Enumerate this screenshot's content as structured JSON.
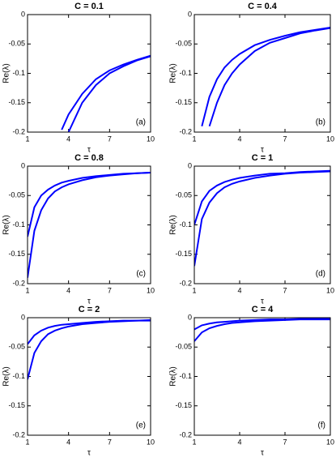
{
  "chart_data": [
    {
      "type": "line",
      "title": "C = 0.1",
      "xlabel": "τ",
      "ylabel": "Re(λ)",
      "panel_label": "(a)",
      "x": [
        1,
        1.5,
        2,
        2.5,
        3,
        3.5,
        4,
        5,
        6,
        7,
        8,
        9,
        10
      ],
      "series": [
        {
          "color": "#0000ff",
          "values": [
            null,
            null,
            null,
            null,
            null,
            -0.196,
            -0.17,
            -0.135,
            -0.11,
            -0.095,
            -0.085,
            -0.077,
            -0.07
          ]
        },
        {
          "color": "#0000ff",
          "values": [
            null,
            null,
            null,
            null,
            null,
            null,
            -0.2,
            -0.15,
            -0.12,
            -0.1,
            -0.088,
            -0.078,
            -0.071
          ]
        }
      ],
      "xlim": [
        1,
        10
      ],
      "ylim": [
        -0.2,
        0
      ],
      "xticks": [
        1,
        4,
        7,
        10
      ],
      "yticks": [
        0,
        -0.05,
        -0.1,
        -0.15,
        -0.2
      ]
    },
    {
      "type": "line",
      "title": "C = 0.4",
      "xlabel": "τ",
      "ylabel": "Re(λ)",
      "panel_label": "(b)",
      "x": [
        1,
        1.5,
        2,
        2.5,
        3,
        3.5,
        4,
        5,
        6,
        7,
        8,
        9,
        10
      ],
      "series": [
        {
          "color": "#0000ff",
          "values": [
            null,
            -0.19,
            -0.14,
            -0.11,
            -0.09,
            -0.077,
            -0.067,
            -0.052,
            -0.043,
            -0.036,
            -0.03,
            -0.026,
            -0.022
          ]
        },
        {
          "color": "#0000ff",
          "values": [
            null,
            null,
            -0.19,
            -0.15,
            -0.12,
            -0.1,
            -0.085,
            -0.062,
            -0.048,
            -0.04,
            -0.032,
            -0.027,
            -0.023
          ]
        }
      ],
      "xlim": [
        1,
        10
      ],
      "ylim": [
        -0.2,
        0
      ],
      "xticks": [
        1,
        4,
        7,
        10
      ],
      "yticks": [
        0,
        -0.05,
        -0.1,
        -0.15,
        -0.2
      ]
    },
    {
      "type": "line",
      "title": "C = 0.8",
      "xlabel": "τ",
      "ylabel": "Re(λ)",
      "panel_label": "(c)",
      "x": [
        1,
        1.5,
        2,
        2.5,
        3,
        3.5,
        4,
        5,
        6,
        7,
        8,
        9,
        10
      ],
      "series": [
        {
          "color": "#0000ff",
          "values": [
            -0.12,
            -0.07,
            -0.05,
            -0.04,
            -0.033,
            -0.028,
            -0.025,
            -0.02,
            -0.017,
            -0.015,
            -0.013,
            -0.012,
            -0.011
          ]
        },
        {
          "color": "#0000ff",
          "values": [
            -0.19,
            -0.11,
            -0.075,
            -0.055,
            -0.043,
            -0.036,
            -0.031,
            -0.024,
            -0.019,
            -0.016,
            -0.014,
            -0.012,
            -0.011
          ]
        }
      ],
      "xlim": [
        1,
        10
      ],
      "ylim": [
        -0.2,
        0
      ],
      "xticks": [
        1,
        4,
        7,
        10
      ],
      "yticks": [
        0,
        -0.05,
        -0.1,
        -0.15,
        -0.2
      ]
    },
    {
      "type": "line",
      "title": "C = 1",
      "xlabel": "τ",
      "ylabel": "Re(λ)",
      "panel_label": "(d)",
      "x": [
        1,
        1.5,
        2,
        2.5,
        3,
        3.5,
        4,
        5,
        6,
        7,
        8,
        9,
        10
      ],
      "series": [
        {
          "color": "#0000ff",
          "values": [
            -0.1,
            -0.06,
            -0.042,
            -0.033,
            -0.027,
            -0.023,
            -0.02,
            -0.016,
            -0.013,
            -0.012,
            -0.01,
            -0.009,
            -0.008
          ]
        },
        {
          "color": "#0000ff",
          "values": [
            -0.17,
            -0.09,
            -0.062,
            -0.046,
            -0.036,
            -0.03,
            -0.026,
            -0.02,
            -0.016,
            -0.013,
            -0.011,
            -0.01,
            -0.009
          ]
        }
      ],
      "xlim": [
        1,
        10
      ],
      "ylim": [
        -0.2,
        0
      ],
      "xticks": [
        1,
        4,
        7,
        10
      ],
      "yticks": [
        0,
        -0.05,
        -0.1,
        -0.15,
        -0.2
      ]
    },
    {
      "type": "line",
      "title": "C = 2",
      "xlabel": "τ",
      "ylabel": "Re(λ)",
      "panel_label": "(e)",
      "x": [
        1,
        1.5,
        2,
        2.5,
        3,
        3.5,
        4,
        5,
        6,
        7,
        8,
        9,
        10
      ],
      "series": [
        {
          "color": "#0000ff",
          "values": [
            -0.045,
            -0.03,
            -0.022,
            -0.017,
            -0.014,
            -0.012,
            -0.011,
            -0.009,
            -0.007,
            -0.006,
            -0.005,
            -0.005,
            -0.004
          ]
        },
        {
          "color": "#0000ff",
          "values": [
            -0.105,
            -0.06,
            -0.04,
            -0.028,
            -0.022,
            -0.018,
            -0.015,
            -0.011,
            -0.009,
            -0.007,
            -0.006,
            -0.005,
            -0.005
          ]
        }
      ],
      "xlim": [
        1,
        10
      ],
      "ylim": [
        -0.2,
        0
      ],
      "xticks": [
        1,
        4,
        7,
        10
      ],
      "yticks": [
        0,
        -0.05,
        -0.1,
        -0.15,
        -0.2
      ]
    },
    {
      "type": "line",
      "title": "C = 4",
      "xlabel": "τ",
      "ylabel": "Re(λ)",
      "panel_label": "(f)",
      "x": [
        1,
        1.5,
        2,
        2.5,
        3,
        3.5,
        4,
        5,
        6,
        7,
        8,
        9,
        10
      ],
      "series": [
        {
          "color": "#0000ff",
          "values": [
            -0.02,
            -0.013,
            -0.01,
            -0.008,
            -0.007,
            -0.006,
            -0.005,
            -0.004,
            -0.003,
            -0.003,
            -0.002,
            -0.002,
            -0.002
          ]
        },
        {
          "color": "#0000ff",
          "values": [
            -0.04,
            -0.025,
            -0.018,
            -0.014,
            -0.011,
            -0.009,
            -0.008,
            -0.006,
            -0.005,
            -0.004,
            -0.003,
            -0.003,
            -0.003
          ]
        }
      ],
      "xlim": [
        1,
        10
      ],
      "ylim": [
        -0.2,
        0
      ],
      "xticks": [
        1,
        4,
        7,
        10
      ],
      "yticks": [
        0,
        -0.05,
        -0.1,
        -0.15,
        -0.2
      ]
    }
  ]
}
